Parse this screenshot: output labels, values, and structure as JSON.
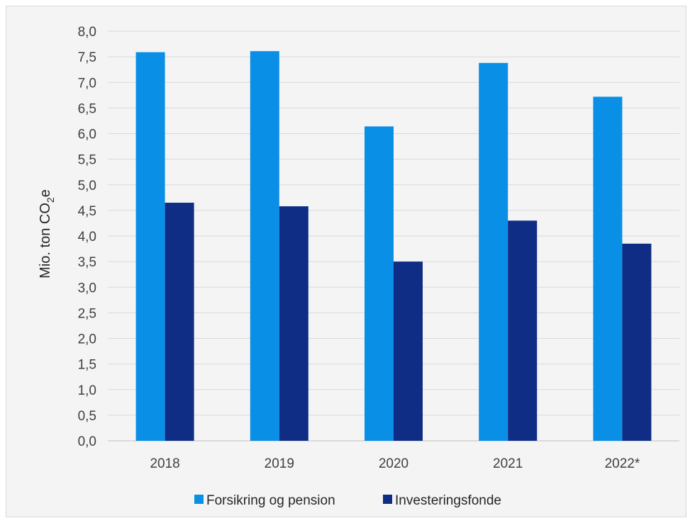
{
  "chart_data": {
    "type": "bar",
    "categories": [
      "2018",
      "2019",
      "2020",
      "2021",
      "2022*"
    ],
    "series": [
      {
        "name": "Forsikring og pension",
        "color": "#0a8fe6",
        "values": [
          7.59,
          7.61,
          6.14,
          7.38,
          6.72
        ]
      },
      {
        "name": "Investeringsfonde",
        "color": "#0f2d85",
        "values": [
          4.65,
          4.58,
          3.5,
          4.3,
          3.85
        ]
      }
    ],
    "ylabel": {
      "main": "Mio. ton CO",
      "sub": "2",
      "suffix": "e"
    },
    "ylim": [
      0,
      8
    ],
    "ytick_labels": [
      "0,0",
      "0,5",
      "1,0",
      "1,5",
      "2,0",
      "2,5",
      "3,0",
      "3,5",
      "4,0",
      "4,5",
      "5,0",
      "5,5",
      "6,0",
      "6,5",
      "7,0",
      "7,5",
      "8,0"
    ],
    "grid": true,
    "legend_position": "bottom"
  }
}
